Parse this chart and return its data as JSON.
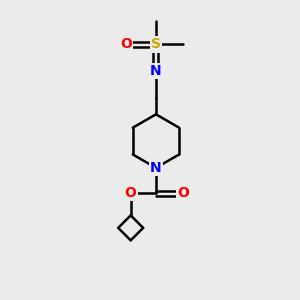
{
  "background_color": "#ebebeb",
  "bond_color": "#000000",
  "atom_colors": {
    "O": "#ff0000",
    "N": "#0000ff",
    "S": "#ccaa00"
  },
  "figsize": [
    3.0,
    3.0
  ],
  "dpi": 100
}
